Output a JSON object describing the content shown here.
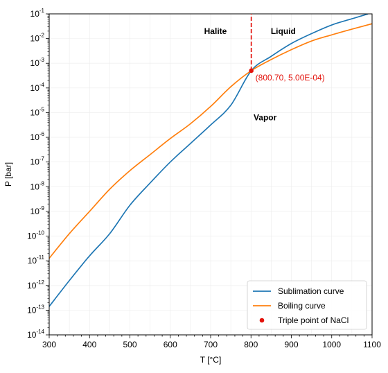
{
  "chart_data": {
    "type": "line",
    "xlabel": "T [°C]",
    "ylabel": "P [bar]",
    "xlim": [
      300,
      1100
    ],
    "ylim_log10": [
      -14,
      -1
    ],
    "yscale": "log",
    "x_ticks": [
      300,
      400,
      500,
      600,
      700,
      800,
      900,
      1000,
      1100
    ],
    "y_tick_exponents": [
      -14,
      -13,
      -12,
      -11,
      -10,
      -9,
      -8,
      -7,
      -6,
      -5,
      -4,
      -3,
      -2,
      -1
    ],
    "y_tick_base": "10",
    "grid": true,
    "legend_position": "bottom-right",
    "series": [
      {
        "name": "Sublimation curve",
        "color": "#1f77b4",
        "x": [
          300,
          350,
          400,
          450,
          500,
          550,
          600,
          650,
          700,
          750,
          800.7,
          850,
          900,
          950,
          1000,
          1050,
          1090
        ],
        "y_log10": [
          -12.85,
          -11.8,
          -10.8,
          -9.9,
          -8.75,
          -7.85,
          -7.0,
          -6.25,
          -5.5,
          -4.7,
          -3.3,
          -2.72,
          -2.2,
          -1.8,
          -1.45,
          -1.2,
          -1.0
        ]
      },
      {
        "name": "Boiling curve",
        "color": "#ff7f0e",
        "x": [
          300,
          350,
          400,
          450,
          500,
          550,
          600,
          650,
          700,
          750,
          800.7,
          850,
          900,
          950,
          1000,
          1050,
          1100
        ],
        "y_log10": [
          -10.9,
          -9.9,
          -9.0,
          -8.1,
          -7.35,
          -6.7,
          -6.05,
          -5.45,
          -4.75,
          -3.95,
          -3.3,
          -2.85,
          -2.45,
          -2.1,
          -1.85,
          -1.62,
          -1.4
        ]
      }
    ],
    "triple_point": {
      "name": "Triple point of NaCl",
      "color": "#e3120b",
      "x": 800.7,
      "y": 0.0005,
      "label": "(800.70, 5.00E-04)"
    },
    "melting_line": {
      "color": "#e3120b",
      "x": 800.7,
      "y_from": 0.0005,
      "y_to": 0.1
    },
    "region_labels": [
      {
        "text": "Halite",
        "x": 712,
        "y_log10": -1.7
      },
      {
        "text": "Liquid",
        "x": 880,
        "y_log10": -1.7
      },
      {
        "text": "Vapor",
        "x": 835,
        "y_log10": -5.2
      }
    ]
  }
}
